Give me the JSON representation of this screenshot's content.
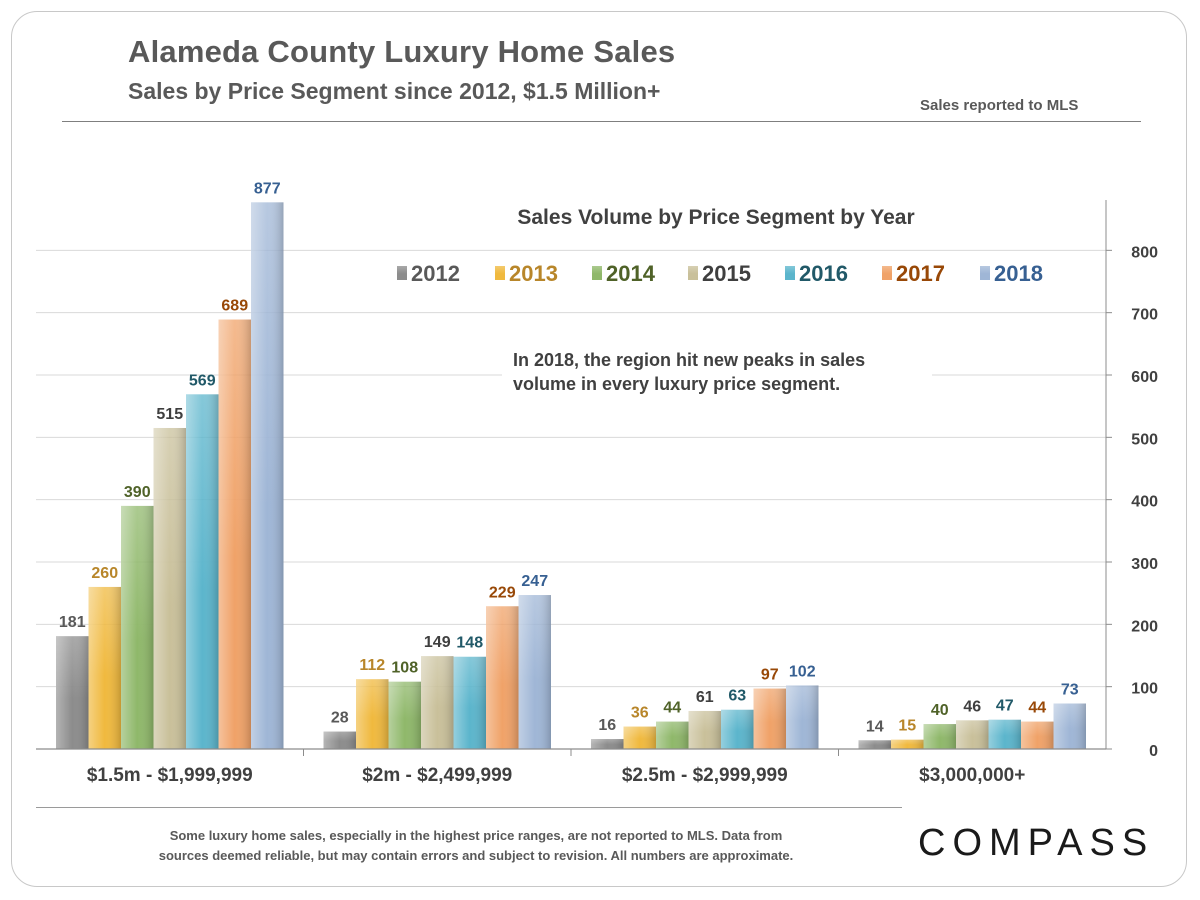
{
  "header": {
    "title": "Alameda County Luxury Home Sales",
    "subtitle": "Sales by Price Segment since 2012, $1.5 Million+",
    "source_note": "Sales reported to MLS"
  },
  "footer": {
    "note_line1": "Some luxury home sales, especially in the highest price ranges, are not reported to MLS. Data from",
    "note_line2": "sources deemed reliable, but may contain errors and subject to revision.  All numbers are approximate.",
    "logo_text": "COMPASS"
  },
  "chart_data": {
    "type": "bar",
    "title": "Sales Volume by Price Segment by Year",
    "annotation": [
      "In 2018, the region hit new peaks in sales",
      "volume in every luxury price segment."
    ],
    "categories": [
      "$1.5m - $1,999,999",
      "$2m - $2,499,999",
      "$2.5m - $2,999,999",
      "$3,000,000+"
    ],
    "series": [
      {
        "name": "2012",
        "values": [
          181,
          28,
          16,
          14
        ],
        "color": "#8c8c8c",
        "label_color": "#595959"
      },
      {
        "name": "2013",
        "values": [
          260,
          112,
          36,
          15
        ],
        "color": "#f0b93e",
        "label_color": "#b8862a"
      },
      {
        "name": "2014",
        "values": [
          390,
          108,
          44,
          40
        ],
        "color": "#8fb86a",
        "label_color": "#4f6228"
      },
      {
        "name": "2015",
        "values": [
          515,
          149,
          61,
          46
        ],
        "color": "#c9c09a",
        "label_color": "#3f3f3f"
      },
      {
        "name": "2016",
        "values": [
          569,
          148,
          63,
          47
        ],
        "color": "#5bb5cc",
        "label_color": "#215968"
      },
      {
        "name": "2017",
        "values": [
          689,
          229,
          97,
          44
        ],
        "color": "#f0a268",
        "label_color": "#984807"
      },
      {
        "name": "2018",
        "values": [
          877,
          247,
          102,
          73
        ],
        "color": "#9fb6d6",
        "label_color": "#376092"
      }
    ],
    "ylim": [
      0,
      900
    ],
    "yticks": [
      0,
      100,
      200,
      300,
      400,
      500,
      600,
      700,
      800
    ],
    "y_axis_side": "right",
    "grid": true,
    "legend_placement": "top"
  }
}
